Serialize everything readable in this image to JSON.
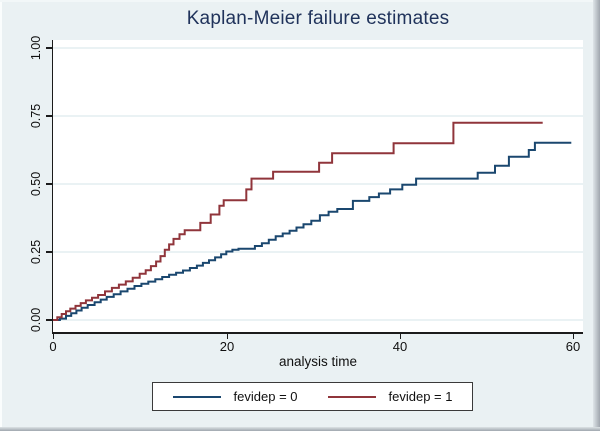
{
  "chart_data": {
    "type": "line",
    "subtype": "kaplan-meier-failure-step",
    "title": "Kaplan-Meier failure estimates",
    "xlabel": "analysis time",
    "ylabel": "",
    "xlim": [
      0,
      61
    ],
    "ylim": [
      0,
      1
    ],
    "grid": "horizontal",
    "grid_color": "#e3edf0",
    "background_color": "#eaf1f3",
    "plot_background_color": "#ffffff",
    "title_color": "#20335b",
    "legend_position": "bottom",
    "xticks": [
      {
        "v": 0,
        "label": "0"
      },
      {
        "v": 20,
        "label": "20"
      },
      {
        "v": 40,
        "label": "40"
      },
      {
        "v": 60,
        "label": "60"
      }
    ],
    "yticks": [
      {
        "v": 0,
        "label": "0.00"
      },
      {
        "v": 0.25,
        "label": "0.25"
      },
      {
        "v": 0.5,
        "label": "0.50"
      },
      {
        "v": 0.75,
        "label": "0.75"
      },
      {
        "v": 1,
        "label": "1.00"
      }
    ],
    "series": [
      {
        "id": "fevidep-0",
        "name": "fevidep = 0",
        "color": "#1a476f",
        "points": [
          [
            0,
            0
          ],
          [
            0.8,
            0.005
          ],
          [
            1.5,
            0.015
          ],
          [
            2.1,
            0.025
          ],
          [
            2.7,
            0.035
          ],
          [
            3.3,
            0.045
          ],
          [
            4.0,
            0.055
          ],
          [
            4.8,
            0.065
          ],
          [
            5.5,
            0.075
          ],
          [
            6.2,
            0.085
          ],
          [
            7.0,
            0.095
          ],
          [
            7.8,
            0.105
          ],
          [
            8.6,
            0.115
          ],
          [
            9.4,
            0.125
          ],
          [
            10.2,
            0.133
          ],
          [
            11.0,
            0.141
          ],
          [
            11.8,
            0.15
          ],
          [
            12.6,
            0.158
          ],
          [
            13.4,
            0.166
          ],
          [
            14.2,
            0.174
          ],
          [
            15.0,
            0.182
          ],
          [
            15.8,
            0.191
          ],
          [
            16.6,
            0.2
          ],
          [
            17.3,
            0.21
          ],
          [
            18.0,
            0.22
          ],
          [
            18.7,
            0.23
          ],
          [
            19.4,
            0.242
          ],
          [
            20.0,
            0.252
          ],
          [
            20.7,
            0.258
          ],
          [
            21.4,
            0.262
          ],
          [
            23.3,
            0.272
          ],
          [
            24.1,
            0.282
          ],
          [
            24.9,
            0.295
          ],
          [
            25.7,
            0.308
          ],
          [
            26.5,
            0.318
          ],
          [
            27.3,
            0.328
          ],
          [
            28.1,
            0.34
          ],
          [
            28.9,
            0.352
          ],
          [
            29.8,
            0.365
          ],
          [
            30.8,
            0.385
          ],
          [
            31.8,
            0.398
          ],
          [
            32.8,
            0.408
          ],
          [
            34.6,
            0.438
          ],
          [
            36.5,
            0.452
          ],
          [
            37.6,
            0.465
          ],
          [
            38.9,
            0.48
          ],
          [
            40.3,
            0.497
          ],
          [
            41.9,
            0.52
          ],
          [
            49.0,
            0.541
          ],
          [
            51.0,
            0.567
          ],
          [
            52.6,
            0.6
          ],
          [
            54.9,
            0.625
          ],
          [
            55.6,
            0.652
          ],
          [
            59.8,
            0.652
          ]
        ]
      },
      {
        "id": "fevidep-1",
        "name": "fevidep = 1",
        "color": "#90353b",
        "points": [
          [
            0,
            0
          ],
          [
            0.5,
            0.01
          ],
          [
            1.0,
            0.022
          ],
          [
            1.5,
            0.032
          ],
          [
            2.0,
            0.042
          ],
          [
            2.6,
            0.052
          ],
          [
            3.2,
            0.062
          ],
          [
            3.8,
            0.072
          ],
          [
            4.5,
            0.082
          ],
          [
            5.2,
            0.092
          ],
          [
            6.0,
            0.105
          ],
          [
            6.8,
            0.118
          ],
          [
            7.6,
            0.13
          ],
          [
            8.4,
            0.142
          ],
          [
            9.2,
            0.155
          ],
          [
            10.0,
            0.17
          ],
          [
            10.7,
            0.183
          ],
          [
            11.3,
            0.198
          ],
          [
            11.9,
            0.215
          ],
          [
            12.4,
            0.235
          ],
          [
            12.9,
            0.258
          ],
          [
            13.4,
            0.278
          ],
          [
            13.9,
            0.298
          ],
          [
            14.6,
            0.315
          ],
          [
            15.2,
            0.33
          ],
          [
            17.0,
            0.357
          ],
          [
            18.2,
            0.388
          ],
          [
            19.2,
            0.42
          ],
          [
            19.7,
            0.44
          ],
          [
            22.3,
            0.48
          ],
          [
            22.9,
            0.52
          ],
          [
            25.4,
            0.545
          ],
          [
            30.7,
            0.578
          ],
          [
            32.2,
            0.613
          ],
          [
            39.3,
            0.65
          ],
          [
            46.2,
            0.725
          ],
          [
            56.5,
            0.725
          ]
        ]
      }
    ]
  }
}
